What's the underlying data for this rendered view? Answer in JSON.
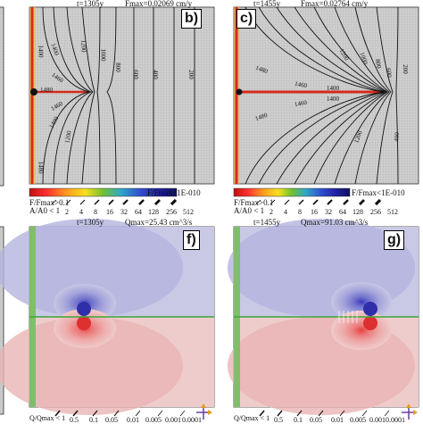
{
  "panels": {
    "b": {
      "label": "b)",
      "time": "t=1305y",
      "fmax": "Fmax=0.02069 cm/y",
      "contours_left": [
        "1400",
        "1460",
        "1480",
        "1200",
        "1400",
        "1460",
        "1480",
        "1400"
      ],
      "contours_right": [
        "1200",
        "1000",
        "800",
        "600",
        "400",
        "200"
      ],
      "colorbar_left": "F/Fmax>0.1",
      "colorbar_right": "F/Fmax<1E-010"
    },
    "c": {
      "label": "c)",
      "time": "t=1455y",
      "fmax": "Fmax=0.02764 cm/y",
      "contours_left": [
        "1480",
        "1460",
        "1400",
        "1200",
        "1400",
        "1460",
        "1480"
      ],
      "contours_right": [
        "1200",
        "1000",
        "800",
        "600",
        "400",
        "200"
      ],
      "colorbar_left": "F/Fmax>0.1",
      "colorbar_right": "F/Fmax<1E-010"
    },
    "f": {
      "label": "f)",
      "time": "t=1305y",
      "qmax": "Qmax=25.43 cm^3/s"
    },
    "g": {
      "label": "g)",
      "time": "t=1455y",
      "qmax": "Qmax=91.03 cm^3/s"
    }
  },
  "aperture_legend": {
    "prefix": "A/A0 < 1",
    "values": [
      "2",
      "4",
      "8",
      "16",
      "32",
      "64",
      "128",
      "256",
      "512"
    ]
  },
  "flow_legend": {
    "prefix": "Q/Qmax < 1",
    "values": [
      "0.5",
      "0.1",
      "0.05",
      "0.01",
      "0.005",
      "0.001",
      "0.0001"
    ]
  },
  "colors": {
    "grid_background": "#c8c8c8",
    "positive_flow": "#e9a3a3",
    "negative_flow": "#a9a9dd",
    "channel_red": "#d42a1a",
    "boundary_green": "#3aa63a"
  }
}
